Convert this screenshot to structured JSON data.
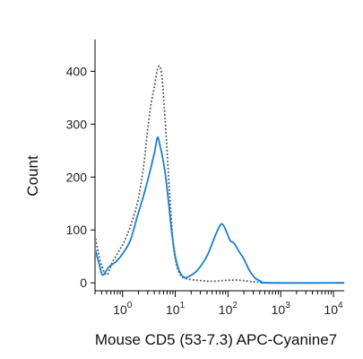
{
  "chart_data": {
    "type": "line",
    "xlabel": "Mouse CD5 (53-7.3) APC-Cyanine7",
    "ylabel": "Count",
    "x_scale": "log",
    "xlim": [
      0.3,
      16000
    ],
    "ylim": [
      -15,
      460
    ],
    "grid": false,
    "legend": "none",
    "x_ticks": [
      {
        "base": "10",
        "exp": "0",
        "value": 1
      },
      {
        "base": "10",
        "exp": "1",
        "value": 10
      },
      {
        "base": "10",
        "exp": "2",
        "value": 100
      },
      {
        "base": "10",
        "exp": "3",
        "value": 1000
      },
      {
        "base": "10",
        "exp": "4",
        "value": 10000
      }
    ],
    "y_ticks": [
      {
        "label": "0",
        "value": 0
      },
      {
        "label": "100",
        "value": 100
      },
      {
        "label": "200",
        "value": 200
      },
      {
        "label": "300",
        "value": 300
      },
      {
        "label": "400",
        "value": 400
      }
    ],
    "series": [
      {
        "style": "dotted",
        "color": "#555555",
        "points": [
          [
            0.3,
            90
          ],
          [
            0.38,
            40
          ],
          [
            0.5,
            15
          ],
          [
            0.65,
            40
          ],
          [
            0.85,
            60
          ],
          [
            1.1,
            80
          ],
          [
            1.5,
            115
          ],
          [
            2.0,
            160
          ],
          [
            2.5,
            220
          ],
          [
            3.0,
            290
          ],
          [
            3.5,
            340
          ],
          [
            4.0,
            370
          ],
          [
            4.5,
            400
          ],
          [
            5.0,
            410
          ],
          [
            5.5,
            395
          ],
          [
            6.0,
            350
          ],
          [
            6.8,
            270
          ],
          [
            7.8,
            170
          ],
          [
            9.0,
            80
          ],
          [
            10.5,
            35
          ],
          [
            12.5,
            15
          ],
          [
            16,
            8
          ],
          [
            25,
            5
          ],
          [
            50,
            3
          ],
          [
            100,
            5
          ],
          [
            160,
            5
          ],
          [
            250,
            3
          ],
          [
            400,
            1
          ],
          [
            1000,
            0
          ],
          [
            16000,
            0
          ]
        ]
      },
      {
        "style": "solid",
        "color": "#1a7fd4",
        "points": [
          [
            0.3,
            65
          ],
          [
            0.36,
            35
          ],
          [
            0.42,
            15
          ],
          [
            0.55,
            30
          ],
          [
            0.75,
            40
          ],
          [
            1.0,
            55
          ],
          [
            1.4,
            80
          ],
          [
            1.9,
            125
          ],
          [
            2.5,
            165
          ],
          [
            3.2,
            205
          ],
          [
            4.0,
            245
          ],
          [
            4.6,
            275
          ],
          [
            5.1,
            260
          ],
          [
            5.8,
            235
          ],
          [
            6.6,
            200
          ],
          [
            7.5,
            150
          ],
          [
            8.6,
            95
          ],
          [
            10,
            50
          ],
          [
            12,
            22
          ],
          [
            15,
            10
          ],
          [
            18,
            12
          ],
          [
            24,
            20
          ],
          [
            32,
            35
          ],
          [
            42,
            55
          ],
          [
            55,
            85
          ],
          [
            70,
            108
          ],
          [
            80,
            110
          ],
          [
            95,
            95
          ],
          [
            110,
            80
          ],
          [
            130,
            75
          ],
          [
            160,
            60
          ],
          [
            200,
            45
          ],
          [
            250,
            25
          ],
          [
            320,
            10
          ],
          [
            420,
            3
          ],
          [
            600,
            0
          ],
          [
            16000,
            0
          ]
        ]
      }
    ]
  }
}
